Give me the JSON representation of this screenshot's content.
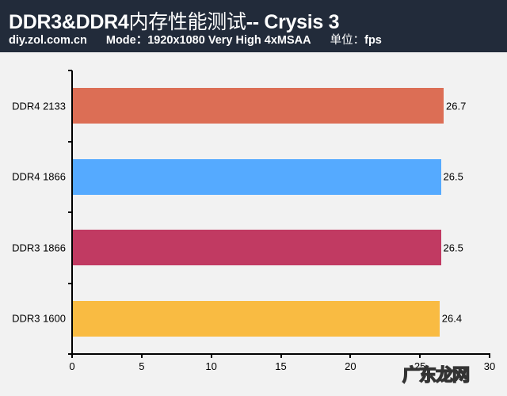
{
  "header": {
    "title_en": "DDR3&DDR4",
    "title_cn": "内存性能测试",
    "title_suffix": "-- Crysis 3",
    "site": "diy.zol.com.cn",
    "mode": "Mode：1920x1080 Very High 4xMSAA",
    "unit_label": "单位：",
    "unit": "fps"
  },
  "watermark": "广东龙网",
  "chart_data": {
    "type": "bar",
    "orientation": "horizontal",
    "title": "DDR3&DDR4内存性能测试-- Crysis 3",
    "subtitle": "diy.zol.com.cn Mode：1920x1080 Very High 4xMSAA 单位：fps",
    "categories": [
      "DDR4 2133",
      "DDR4 1866",
      "DDR3 1866",
      "DDR3 1600"
    ],
    "values": [
      26.7,
      26.5,
      26.5,
      26.4
    ],
    "value_labels": [
      "26.7",
      "26.5",
      "26.5",
      "26.4"
    ],
    "colors": [
      "#dc6e55",
      "#55aaff",
      "#c13a62",
      "#f9bb42"
    ],
    "xlabel": "",
    "ylabel": "",
    "xlim": [
      0,
      30
    ],
    "xticks": [
      "0",
      "5",
      "10",
      "15",
      "20",
      "25",
      "30"
    ],
    "grid": false,
    "legend": "none"
  }
}
